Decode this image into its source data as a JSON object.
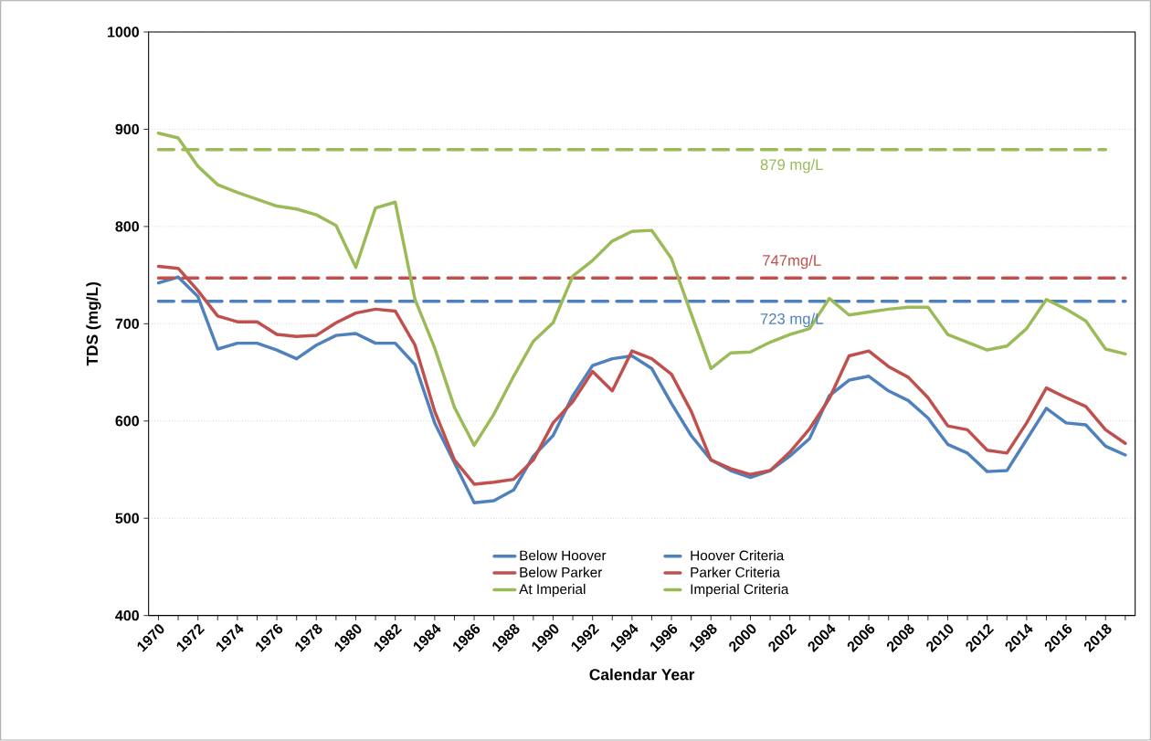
{
  "chart_data": {
    "type": "line",
    "xlabel": "Calendar Year",
    "ylabel": "TDS (mg/L)",
    "categories": [
      "1970",
      null,
      "1972",
      null,
      "1974",
      null,
      "1976",
      null,
      "1978",
      null,
      "1980",
      null,
      "1982",
      null,
      "1984",
      null,
      "1986",
      null,
      "1988",
      null,
      "1990",
      null,
      "1992",
      null,
      "1994",
      null,
      "1996",
      null,
      "1998",
      null,
      "2000",
      null,
      "2002",
      null,
      "2004",
      null,
      "2006",
      null,
      "2008",
      null,
      "2010",
      null,
      "2012",
      null,
      "2014",
      null,
      "2016",
      null,
      "2018",
      null
    ],
    "series": [
      {
        "name": "Below Hoover",
        "color": "#4f81bd",
        "line_style": "solid",
        "values": [
          742,
          748,
          728,
          674,
          680,
          680,
          673,
          664,
          678,
          688,
          690,
          680,
          680,
          658,
          598,
          557,
          516,
          518,
          529,
          564,
          585,
          626,
          657,
          664,
          667,
          654,
          618,
          585,
          560,
          549,
          542,
          549,
          564,
          582,
          626,
          642,
          646,
          631,
          621,
          603,
          576,
          567,
          548,
          549,
          581,
          613,
          598,
          596,
          574,
          565
        ]
      },
      {
        "name": "Hoover Criteria",
        "color": "#4f81bd",
        "line_style": "dashed",
        "values": [
          723,
          723,
          723,
          723,
          723,
          723,
          723,
          723,
          723,
          723,
          723,
          723,
          723,
          723,
          723,
          723,
          723,
          723,
          723,
          723,
          723,
          723,
          723,
          723,
          723,
          723,
          723,
          723,
          723,
          723,
          723,
          723,
          723,
          723,
          723,
          723,
          723,
          723,
          723,
          723,
          723,
          723,
          723,
          723,
          723,
          723,
          723,
          723,
          723,
          723
        ]
      },
      {
        "name": "Below Parker",
        "color": "#c0504d",
        "line_style": "solid",
        "values": [
          759,
          757,
          734,
          708,
          702,
          702,
          689,
          687,
          688,
          701,
          711,
          715,
          713,
          678,
          610,
          560,
          535,
          537,
          540,
          560,
          598,
          620,
          651,
          631,
          672,
          664,
          648,
          610,
          560,
          551,
          545,
          549,
          568,
          592,
          623,
          667,
          672,
          656,
          645,
          624,
          595,
          591,
          570,
          567,
          598,
          634,
          624,
          615,
          591,
          577
        ]
      },
      {
        "name": "Parker Criteria",
        "color": "#c0504d",
        "line_style": "dashed",
        "values": [
          747,
          747,
          747,
          747,
          747,
          747,
          747,
          747,
          747,
          747,
          747,
          747,
          747,
          747,
          747,
          747,
          747,
          747,
          747,
          747,
          747,
          747,
          747,
          747,
          747,
          747,
          747,
          747,
          747,
          747,
          747,
          747,
          747,
          747,
          747,
          747,
          747,
          747,
          747,
          747,
          747,
          747,
          747,
          747,
          747,
          747,
          747,
          747,
          747,
          747
        ]
      },
      {
        "name": "At Imperial",
        "color": "#9bbb59",
        "line_style": "solid",
        "values": [
          896,
          891,
          862,
          843,
          835,
          828,
          821,
          818,
          812,
          801,
          758,
          819,
          825,
          725,
          675,
          614,
          575,
          607,
          646,
          682,
          701,
          749,
          765,
          785,
          795,
          796,
          767,
          710,
          654,
          670,
          671,
          681,
          689,
          695,
          726,
          709,
          712,
          715,
          717,
          717,
          689,
          681,
          673,
          677,
          695,
          725,
          715,
          703,
          674,
          669
        ]
      },
      {
        "name": "Imperial Criteria",
        "color": "#9bbb59",
        "line_style": "dashed",
        "values": [
          879,
          879,
          879,
          879,
          879,
          879,
          879,
          879,
          879,
          879,
          879,
          879,
          879,
          879,
          879,
          879,
          879,
          879,
          879,
          879,
          879,
          879,
          879,
          879,
          879,
          879,
          879,
          879,
          879,
          879,
          879,
          879,
          879,
          879,
          879,
          879,
          879,
          879,
          879,
          879,
          879,
          879,
          879,
          879,
          879,
          879,
          879,
          879,
          879,
          null
        ]
      }
    ],
    "annotations": [
      "879 mg/L",
      "747mg/L",
      "723 mg/L"
    ],
    "ylim": [
      400,
      1000
    ],
    "yticks": [
      400,
      500,
      600,
      700,
      800,
      900,
      1000
    ],
    "grid": "y",
    "legend": "bottom"
  }
}
